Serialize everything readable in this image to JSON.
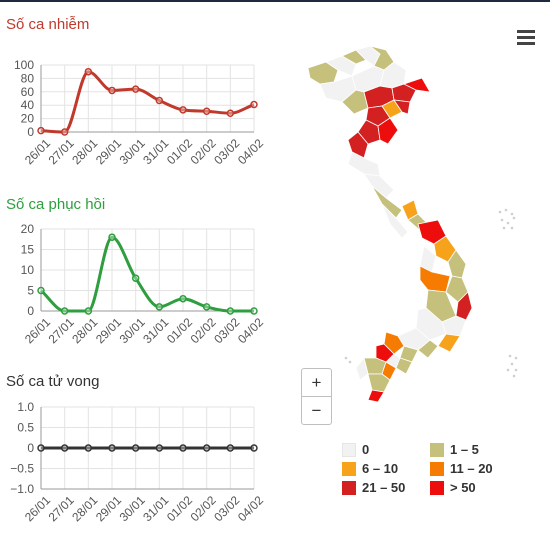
{
  "colors": {
    "cases": "#c0392b",
    "recovered": "#2e9e3e",
    "deaths": "#333333",
    "grid": "#e3e3e3",
    "axis": "#555555"
  },
  "menu": {
    "icon": "hamburger-menu-icon"
  },
  "zoom": {
    "in_label": "+",
    "out_label": "−"
  },
  "legend": {
    "items": [
      {
        "label": "0",
        "color": "#f2f2f2"
      },
      {
        "label": "1 – 5",
        "color": "#c5c17c"
      },
      {
        "label": "6 – 10",
        "color": "#f7a21b"
      },
      {
        "label": "11 – 20",
        "color": "#f57c00"
      },
      {
        "label": "21 – 50",
        "color": "#d32020"
      },
      {
        "label": "> 50",
        "color": "#ee0d0d"
      }
    ]
  },
  "chart_data": [
    {
      "type": "line",
      "title": "Số ca nhiễm",
      "categories": [
        "26/01",
        "27/01",
        "28/01",
        "29/01",
        "30/01",
        "31/01",
        "01/02",
        "02/02",
        "03/02",
        "04/02"
      ],
      "series": [
        {
          "values": [
            2,
            0,
            90,
            62,
            64,
            47,
            33,
            31,
            28,
            41
          ]
        }
      ],
      "ylim": [
        0,
        100
      ],
      "yticks": [
        0,
        20,
        40,
        60,
        80,
        100
      ],
      "grid": true
    },
    {
      "type": "line",
      "title": "Số ca phục hồi",
      "categories": [
        "26/01",
        "27/01",
        "28/01",
        "29/01",
        "30/01",
        "31/01",
        "01/02",
        "02/02",
        "03/02",
        "04/02"
      ],
      "series": [
        {
          "values": [
            5,
            0,
            0,
            18,
            8,
            1,
            3,
            1,
            0,
            0
          ]
        }
      ],
      "ylim": [
        0,
        20
      ],
      "yticks": [
        0,
        5,
        10,
        15,
        20
      ],
      "grid": true
    },
    {
      "type": "line",
      "title": "Số ca tử vong",
      "categories": [
        "26/01",
        "27/01",
        "28/01",
        "29/01",
        "30/01",
        "31/01",
        "01/02",
        "02/02",
        "03/02",
        "04/02"
      ],
      "series": [
        {
          "values": [
            0,
            0,
            0,
            0,
            0,
            0,
            0,
            0,
            0,
            0
          ]
        }
      ],
      "ylim": [
        -1,
        1
      ],
      "yticks": [
        -1.0,
        -0.5,
        0,
        0.5,
        1.0
      ],
      "ytick_labels": [
        "−1.0",
        "−0.5",
        "0",
        "0.5",
        "1.0"
      ],
      "grid": true
    }
  ]
}
